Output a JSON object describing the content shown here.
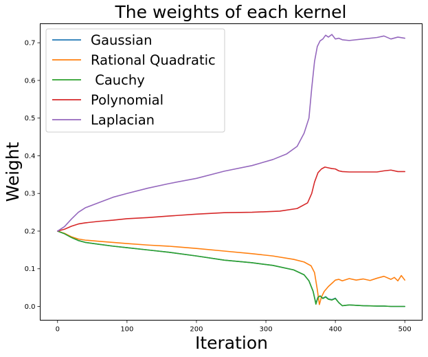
{
  "chart_data": {
    "type": "line",
    "title": "The weights of each kernel",
    "xlabel": "Iteration",
    "ylabel": "Weight",
    "xlim": [
      -25,
      525
    ],
    "ylim": [
      -0.0365,
      0.7505
    ],
    "xticks": [
      0,
      100,
      200,
      300,
      400,
      500
    ],
    "yticks": [
      0.0,
      0.1,
      0.2,
      0.3,
      0.4,
      0.5,
      0.6,
      0.7
    ],
    "ytick_labels": [
      "0.0",
      "0.1",
      "0.2",
      "0.3",
      "0.4",
      "0.5",
      "0.6",
      "0.7"
    ],
    "grid": false,
    "legend_position": "upper-left",
    "series": [
      {
        "name": "Gaussian",
        "color": "#1f77b4",
        "x": [
          0,
          10,
          20,
          30,
          40,
          60,
          80,
          100,
          130,
          160,
          200,
          240,
          280,
          310,
          340,
          355,
          362,
          368,
          372,
          375,
          378,
          382,
          386,
          390,
          395,
          400,
          405,
          410,
          420,
          440,
          460,
          470,
          480,
          490,
          500
        ],
        "y": [
          0.2,
          0.193,
          0.183,
          0.175,
          0.17,
          0.165,
          0.16,
          0.156,
          0.15,
          0.144,
          0.134,
          0.123,
          0.116,
          0.109,
          0.097,
          0.084,
          0.068,
          0.04,
          0.008,
          0.025,
          0.028,
          0.022,
          0.026,
          0.02,
          0.018,
          0.022,
          0.01,
          0.002,
          0.004,
          0.002,
          0.001,
          0.001,
          0.0,
          0.0,
          0.0
        ]
      },
      {
        "name": "Rational Quadratic",
        "color": "#ff7f0e",
        "x": [
          0,
          10,
          20,
          30,
          40,
          60,
          80,
          100,
          130,
          160,
          200,
          240,
          280,
          310,
          340,
          355,
          365,
          370,
          374,
          377,
          380,
          384,
          390,
          396,
          400,
          405,
          410,
          420,
          430,
          440,
          450,
          460,
          470,
          480,
          485,
          490,
          495,
          500
        ],
        "y": [
          0.2,
          0.194,
          0.185,
          0.179,
          0.176,
          0.173,
          0.17,
          0.167,
          0.163,
          0.16,
          0.154,
          0.147,
          0.14,
          0.134,
          0.125,
          0.118,
          0.108,
          0.09,
          0.045,
          0.005,
          0.025,
          0.04,
          0.053,
          0.063,
          0.07,
          0.072,
          0.068,
          0.074,
          0.07,
          0.073,
          0.069,
          0.075,
          0.08,
          0.072,
          0.077,
          0.068,
          0.082,
          0.07
        ]
      },
      {
        "name": " Cauchy",
        "color": "#2ca02c",
        "x": [
          0,
          10,
          20,
          30,
          40,
          60,
          80,
          100,
          130,
          160,
          200,
          240,
          280,
          310,
          340,
          355,
          362,
          368,
          372,
          375,
          378,
          382,
          386,
          390,
          395,
          400,
          405,
          410,
          420,
          440,
          460,
          470,
          480,
          490,
          500
        ],
        "y": [
          0.2,
          0.193,
          0.183,
          0.175,
          0.17,
          0.165,
          0.16,
          0.156,
          0.15,
          0.144,
          0.134,
          0.123,
          0.116,
          0.109,
          0.097,
          0.084,
          0.068,
          0.04,
          0.006,
          0.024,
          0.028,
          0.021,
          0.025,
          0.019,
          0.017,
          0.021,
          0.01,
          0.002,
          0.004,
          0.002,
          0.001,
          0.001,
          0.0,
          0.0,
          0.0
        ]
      },
      {
        "name": "Polynomial",
        "color": "#d62728",
        "x": [
          0,
          10,
          20,
          30,
          40,
          60,
          80,
          100,
          130,
          160,
          200,
          240,
          280,
          320,
          345,
          360,
          366,
          370,
          375,
          380,
          385,
          390,
          395,
          400,
          405,
          410,
          420,
          440,
          460,
          470,
          480,
          490,
          500
        ],
        "y": [
          0.2,
          0.205,
          0.213,
          0.219,
          0.222,
          0.226,
          0.229,
          0.233,
          0.236,
          0.24,
          0.245,
          0.249,
          0.25,
          0.253,
          0.26,
          0.275,
          0.3,
          0.33,
          0.355,
          0.365,
          0.37,
          0.368,
          0.366,
          0.365,
          0.36,
          0.358,
          0.357,
          0.357,
          0.357,
          0.36,
          0.362,
          0.358,
          0.358
        ]
      },
      {
        "name": "Laplacian",
        "color": "#9467bd",
        "x": [
          0,
          10,
          20,
          30,
          40,
          60,
          80,
          100,
          130,
          160,
          200,
          240,
          280,
          310,
          330,
          345,
          355,
          362,
          366,
          370,
          374,
          378,
          382,
          386,
          390,
          395,
          400,
          405,
          410,
          420,
          440,
          460,
          470,
          480,
          490,
          500
        ],
        "y": [
          0.2,
          0.212,
          0.232,
          0.25,
          0.262,
          0.276,
          0.29,
          0.3,
          0.314,
          0.326,
          0.34,
          0.359,
          0.374,
          0.39,
          0.405,
          0.425,
          0.46,
          0.5,
          0.58,
          0.65,
          0.69,
          0.705,
          0.71,
          0.72,
          0.715,
          0.722,
          0.71,
          0.712,
          0.708,
          0.706,
          0.71,
          0.714,
          0.718,
          0.71,
          0.715,
          0.712
        ]
      }
    ]
  }
}
